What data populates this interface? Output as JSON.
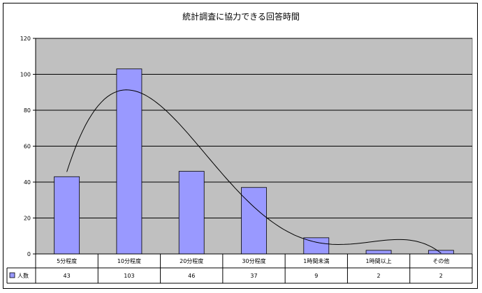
{
  "chart_data": {
    "type": "bar",
    "title": "統計調査に協力できる回答時間",
    "categories": [
      "5分程度",
      "10分程度",
      "20分程度",
      "30分程度",
      "1時間未満",
      "1時間以上",
      "その他"
    ],
    "series": [
      {
        "name": "人数",
        "values": [
          43,
          103,
          46,
          37,
          9,
          2,
          2
        ],
        "color": "#9999ff"
      }
    ],
    "trendline": {
      "type": "polynomial",
      "color": "#000000"
    },
    "ylim": [
      0,
      120
    ],
    "yticks": [
      0,
      20,
      40,
      60,
      80,
      100,
      120
    ],
    "grid": true,
    "plot_background": "#c0c0c0",
    "legend": "data-table"
  }
}
